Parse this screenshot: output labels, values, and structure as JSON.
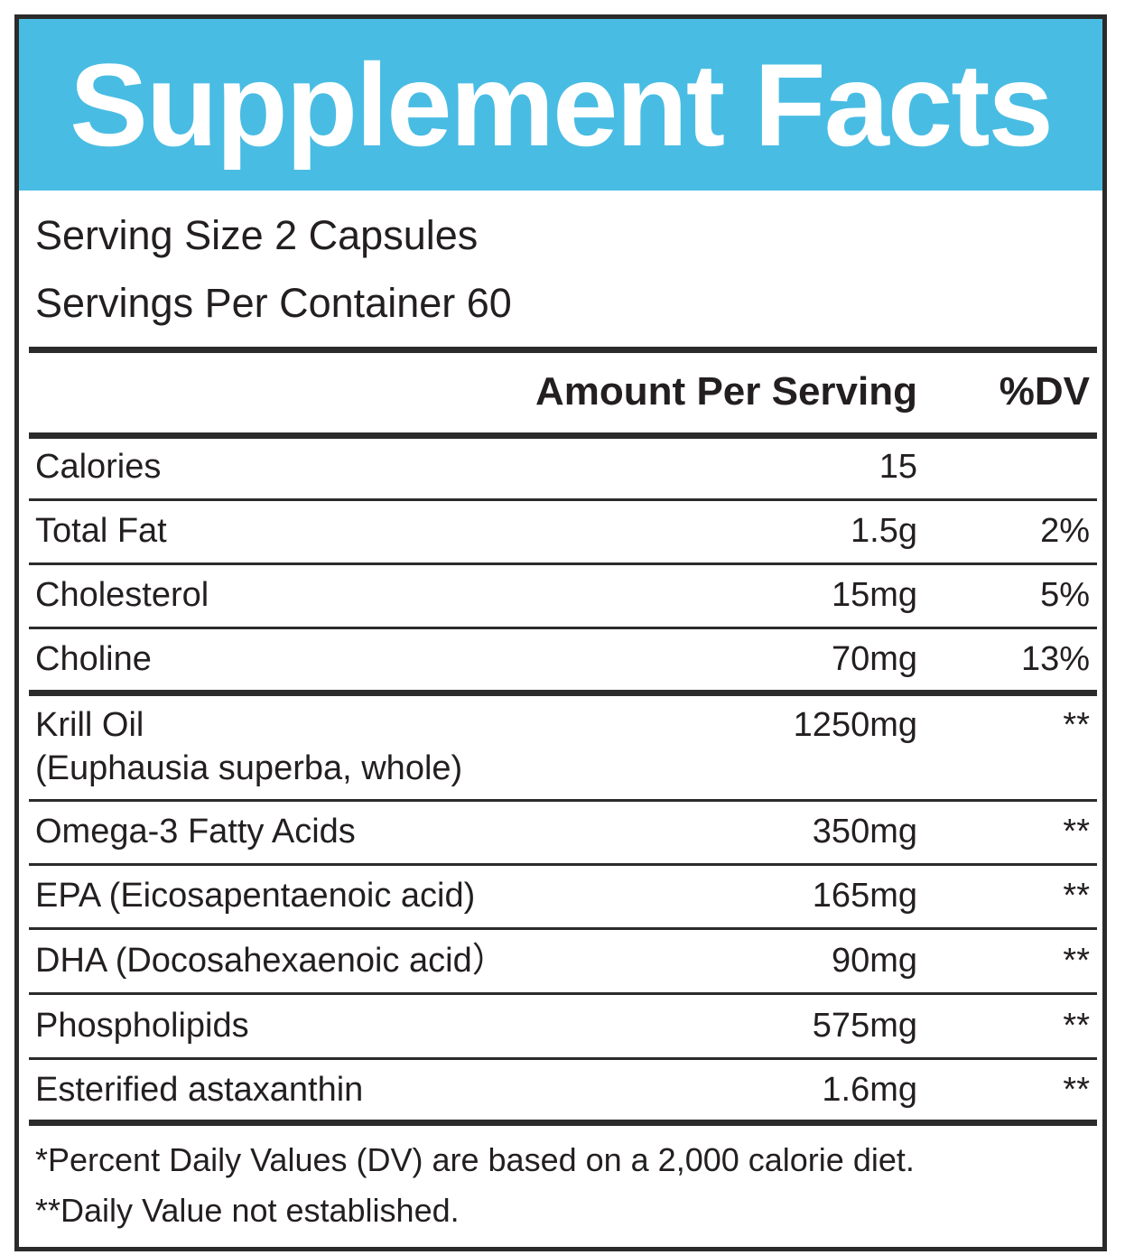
{
  "header": {
    "title": "Supplement Facts"
  },
  "serving": {
    "size": "Serving Size 2 Capsules",
    "per_container": "Servings Per Container 60"
  },
  "columns": {
    "amount": "Amount Per Serving",
    "dv": "%DV"
  },
  "rows": [
    {
      "name": "Calories",
      "amount": "15",
      "dv": ""
    },
    {
      "name": "Total Fat",
      "amount": "1.5g",
      "dv": "2%"
    },
    {
      "name": "Cholesterol",
      "amount": "15mg",
      "dv": "5%"
    },
    {
      "name": "Choline",
      "amount": "70mg",
      "dv": "13%"
    },
    {
      "name": "Krill Oil",
      "name_sub": "(Euphausia superba, whole)",
      "amount": "1250mg",
      "dv": "**"
    },
    {
      "name": "Omega-3 Fatty Acids",
      "amount": "350mg",
      "dv": "**"
    },
    {
      "name": "EPA (Eicosapentaenoic acid)",
      "amount": "165mg",
      "dv": "**"
    },
    {
      "name": "DHA (Docosahexaenoic acid）",
      "amount": "90mg",
      "dv": "**"
    },
    {
      "name": "Phospholipids",
      "amount": "575mg",
      "dv": "**"
    },
    {
      "name": "Esterified astaxanthin",
      "amount": "1.6mg",
      "dv": "**"
    }
  ],
  "footnotes": {
    "dv_basis": "*Percent Daily Values (DV) are based on a 2,000 calorie diet.",
    "not_established": "**Daily Value not established."
  },
  "colors": {
    "header_bg": "#49bce3",
    "border": "#2b2b2b",
    "text": "#231f20"
  }
}
